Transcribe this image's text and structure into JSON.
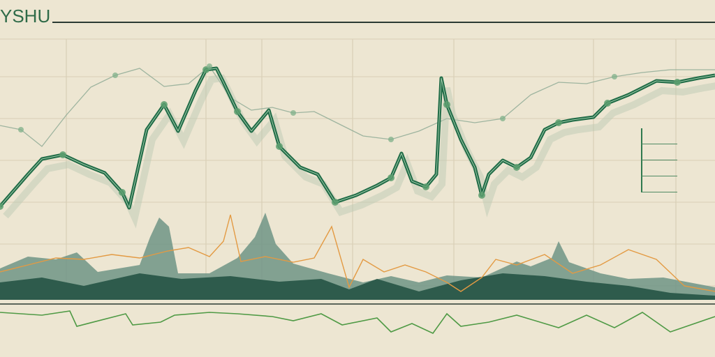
{
  "header": {
    "title": "YSHU",
    "subtitle": ""
  },
  "colors": {
    "background": "#ede6d2",
    "primary_line": "#1f6b46",
    "marker": "#5c9e6e",
    "mountain_dark": "#2e5b4c",
    "mountain_light": "#6e9486",
    "orange_line": "#e39a43",
    "bottom_line": "#4f9a45",
    "grid": "#d9cfb6"
  },
  "chart_data": {
    "type": "line",
    "title": "YSHU",
    "xlabel": "",
    "ylabel": "",
    "grid": true,
    "legend_position": "right",
    "legend": [
      "",
      "",
      "",
      ""
    ],
    "x_tick_labels": [
      "",
      "",
      "",
      ""
    ],
    "primary": [
      [
        0,
        296
      ],
      [
        40,
        250
      ],
      [
        60,
        228
      ],
      [
        90,
        222
      ],
      [
        120,
        236
      ],
      [
        150,
        248
      ],
      [
        175,
        276
      ],
      [
        185,
        298
      ],
      [
        210,
        186
      ],
      [
        235,
        150
      ],
      [
        255,
        188
      ],
      [
        280,
        130
      ],
      [
        295,
        100
      ],
      [
        310,
        98
      ],
      [
        320,
        118
      ],
      [
        340,
        160
      ],
      [
        360,
        188
      ],
      [
        385,
        158
      ],
      [
        400,
        210
      ],
      [
        430,
        240
      ],
      [
        455,
        250
      ],
      [
        480,
        290
      ],
      [
        510,
        280
      ],
      [
        540,
        266
      ],
      [
        560,
        255
      ],
      [
        575,
        220
      ],
      [
        590,
        260
      ],
      [
        610,
        268
      ],
      [
        625,
        250
      ],
      [
        632,
        112
      ],
      [
        640,
        150
      ],
      [
        660,
        200
      ],
      [
        680,
        240
      ],
      [
        690,
        280
      ],
      [
        700,
        250
      ],
      [
        720,
        230
      ],
      [
        740,
        240
      ],
      [
        760,
        226
      ],
      [
        780,
        186
      ],
      [
        800,
        176
      ],
      [
        820,
        172
      ],
      [
        850,
        168
      ],
      [
        870,
        148
      ],
      [
        900,
        136
      ],
      [
        940,
        116
      ],
      [
        970,
        118
      ],
      [
        1000,
        112
      ],
      [
        1024,
        108
      ]
    ],
    "upper_light": [
      [
        0,
        180
      ],
      [
        30,
        186
      ],
      [
        60,
        210
      ],
      [
        95,
        165
      ],
      [
        130,
        125
      ],
      [
        165,
        108
      ],
      [
        200,
        98
      ],
      [
        235,
        124
      ],
      [
        270,
        120
      ],
      [
        300,
        95
      ],
      [
        330,
        140
      ],
      [
        360,
        158
      ],
      [
        390,
        154
      ],
      [
        420,
        162
      ],
      [
        450,
        160
      ],
      [
        480,
        175
      ],
      [
        520,
        195
      ],
      [
        560,
        200
      ],
      [
        600,
        188
      ],
      [
        640,
        170
      ],
      [
        680,
        176
      ],
      [
        720,
        170
      ],
      [
        760,
        136
      ],
      [
        800,
        118
      ],
      [
        840,
        120
      ],
      [
        880,
        110
      ],
      [
        920,
        104
      ],
      [
        960,
        100
      ],
      [
        1024,
        100
      ]
    ],
    "orange": [
      [
        0,
        390
      ],
      [
        40,
        380
      ],
      [
        80,
        370
      ],
      [
        120,
        372
      ],
      [
        160,
        365
      ],
      [
        200,
        370
      ],
      [
        240,
        360
      ],
      [
        270,
        355
      ],
      [
        300,
        368
      ],
      [
        320,
        346
      ],
      [
        330,
        308
      ],
      [
        345,
        375
      ],
      [
        380,
        368
      ],
      [
        420,
        376
      ],
      [
        450,
        370
      ],
      [
        475,
        325
      ],
      [
        500,
        412
      ],
      [
        520,
        372
      ],
      [
        550,
        390
      ],
      [
        580,
        380
      ],
      [
        610,
        390
      ],
      [
        640,
        405
      ],
      [
        660,
        418
      ],
      [
        690,
        398
      ],
      [
        710,
        372
      ],
      [
        740,
        380
      ],
      [
        780,
        365
      ],
      [
        820,
        392
      ],
      [
        860,
        380
      ],
      [
        900,
        358
      ],
      [
        940,
        372
      ],
      [
        980,
        410
      ],
      [
        1024,
        418
      ]
    ],
    "bottom": [
      [
        0,
        448
      ],
      [
        60,
        452
      ],
      [
        100,
        446
      ],
      [
        110,
        468
      ],
      [
        180,
        450
      ],
      [
        190,
        466
      ],
      [
        230,
        462
      ],
      [
        250,
        452
      ],
      [
        300,
        448
      ],
      [
        340,
        450
      ],
      [
        390,
        454
      ],
      [
        420,
        460
      ],
      [
        460,
        450
      ],
      [
        490,
        466
      ],
      [
        540,
        456
      ],
      [
        560,
        476
      ],
      [
        590,
        464
      ],
      [
        620,
        478
      ],
      [
        640,
        450
      ],
      [
        660,
        468
      ],
      [
        700,
        462
      ],
      [
        740,
        452
      ],
      [
        760,
        458
      ],
      [
        800,
        470
      ],
      [
        840,
        452
      ],
      [
        880,
        470
      ],
      [
        920,
        448
      ],
      [
        960,
        476
      ],
      [
        1024,
        454
      ]
    ]
  }
}
